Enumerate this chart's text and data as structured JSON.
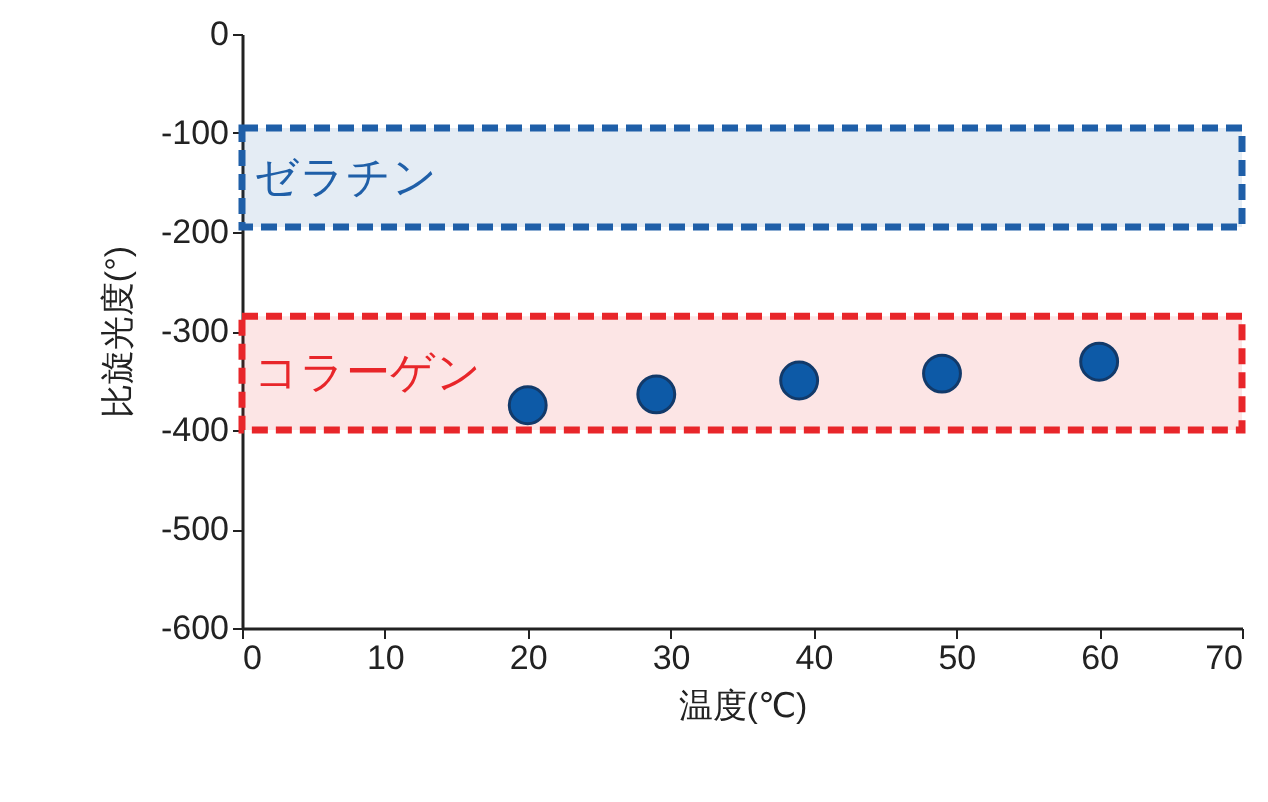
{
  "chart_data": {
    "type": "scatter",
    "xlabel": "温度(℃)",
    "ylabel": "比旋光度(°)",
    "x": [
      20,
      29,
      39,
      49,
      60
    ],
    "series": [
      {
        "color": "#0d5aa7",
        "values": [
          -375,
          -364,
          -350,
          -343,
          -331
        ]
      }
    ],
    "marker": "circle",
    "xlim": [
      0,
      70
    ],
    "xticks": [
      0,
      10,
      20,
      30,
      40,
      50,
      60,
      70
    ],
    "ylim": [
      -600,
      0
    ],
    "yticks": [
      0,
      -100,
      -200,
      -300,
      -400,
      -500,
      -600
    ],
    "bands": [
      {
        "axis": "y",
        "from": -195,
        "to": -95,
        "label": "ゼラチン",
        "color": "#1f5fa8"
      },
      {
        "axis": "y",
        "from": -400,
        "to": -285,
        "label": "コラーゲン",
        "color": "#e8262a"
      }
    ],
    "grid": false
  }
}
